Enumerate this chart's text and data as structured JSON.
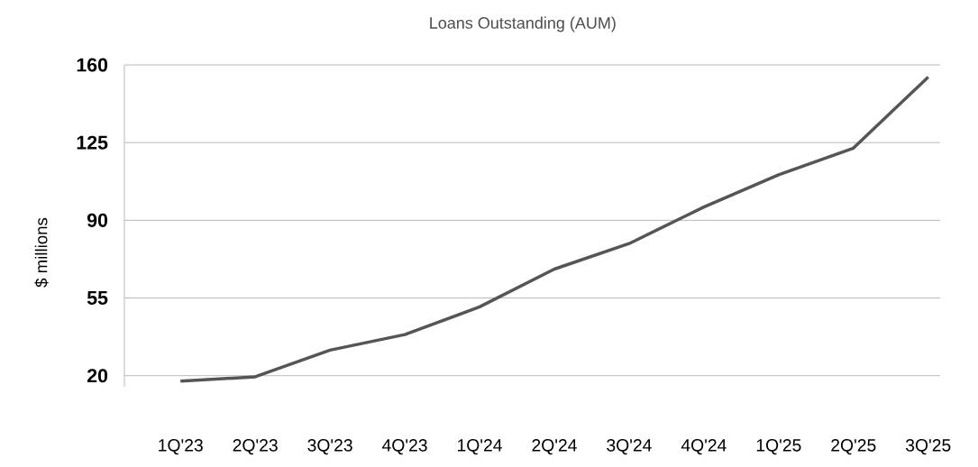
{
  "chart_data": {
    "type": "line",
    "title": "Loans Outstanding (AUM)",
    "ylabel": "$ millions",
    "categories": [
      "1Q'23",
      "2Q'23",
      "3Q'23",
      "4Q'23",
      "1Q'24",
      "2Q'24",
      "3Q'24",
      "4Q'24",
      "1Q'25",
      "2Q'25",
      "3Q'25"
    ],
    "series": [
      {
        "color": "#555555",
        "values": [
          17.5,
          19.5,
          31.5,
          38.5,
          51,
          68,
          79.5,
          96,
          110.5,
          122.5,
          154.5
        ]
      }
    ],
    "ylim": [
      15,
      160
    ],
    "yticks": [
      20,
      55,
      90,
      125,
      160
    ],
    "grid": "y",
    "marker": "none",
    "line_style": "solid"
  }
}
